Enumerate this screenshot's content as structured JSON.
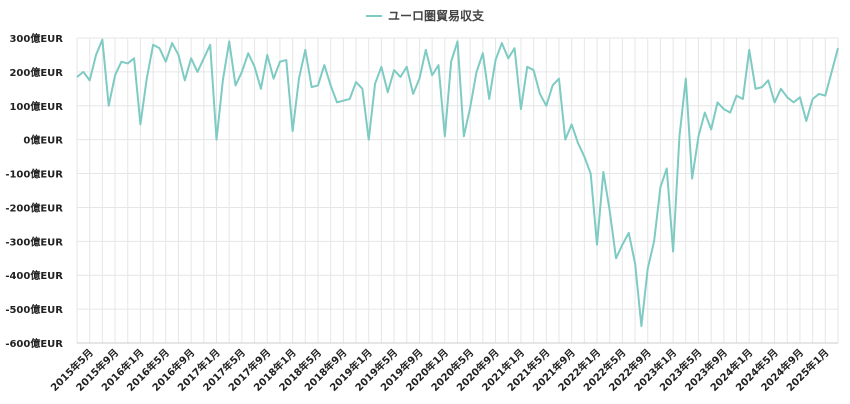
{
  "chart_data": {
    "type": "line",
    "title": "",
    "xlabel": "",
    "ylabel": "",
    "ylim": [
      -600,
      300
    ],
    "y_ticks": [
      "300億EUR",
      "200億EUR",
      "100億EUR",
      "0億EUR",
      "-100億EUR",
      "-200億EUR",
      "-300億EUR",
      "-400億EUR",
      "-500億EUR",
      "-600億EUR"
    ],
    "y_tick_values": [
      300,
      200,
      100,
      0,
      -100,
      -200,
      -300,
      -400,
      -500,
      -600
    ],
    "x_tick_labels": [
      "2015年5月",
      "2015年9月",
      "2016年1月",
      "2016年5月",
      "2016年9月",
      "2017年1月",
      "2017年5月",
      "2017年9月",
      "2018年1月",
      "2018年5月",
      "2018年9月",
      "2019年1月",
      "2019年5月",
      "2019年9月",
      "2020年1月",
      "2020年5月",
      "2020年9月",
      "2021年1月",
      "2021年5月",
      "2021年9月",
      "2022年1月",
      "2022年5月",
      "2022年9月",
      "2023年1月",
      "2023年5月",
      "2023年9月",
      "2024年1月",
      "2024年5月",
      "2024年9月",
      "2025年1月"
    ],
    "legend_position": "top-center",
    "grid": true,
    "series": [
      {
        "name": "ユーロ圏貿易収支",
        "color": "#7ecbc3",
        "x": [
          "2015-03",
          "2015-04",
          "2015-05",
          "2015-06",
          "2015-07",
          "2015-08",
          "2015-09",
          "2015-10",
          "2015-11",
          "2015-12",
          "2016-01",
          "2016-02",
          "2016-03",
          "2016-04",
          "2016-05",
          "2016-06",
          "2016-07",
          "2016-08",
          "2016-09",
          "2016-10",
          "2016-11",
          "2016-12",
          "2017-01",
          "2017-02",
          "2017-03",
          "2017-04",
          "2017-05",
          "2017-06",
          "2017-07",
          "2017-08",
          "2017-09",
          "2017-10",
          "2017-11",
          "2017-12",
          "2018-01",
          "2018-02",
          "2018-03",
          "2018-04",
          "2018-05",
          "2018-06",
          "2018-07",
          "2018-08",
          "2018-09",
          "2018-10",
          "2018-11",
          "2018-12",
          "2019-01",
          "2019-02",
          "2019-03",
          "2019-04",
          "2019-05",
          "2019-06",
          "2019-07",
          "2019-08",
          "2019-09",
          "2019-10",
          "2019-11",
          "2019-12",
          "2020-01",
          "2020-02",
          "2020-03",
          "2020-04",
          "2020-05",
          "2020-06",
          "2020-07",
          "2020-08",
          "2020-09",
          "2020-10",
          "2020-11",
          "2020-12",
          "2021-01",
          "2021-02",
          "2021-03",
          "2021-04",
          "2021-05",
          "2021-06",
          "2021-07",
          "2021-08",
          "2021-09",
          "2021-10",
          "2021-11",
          "2021-12",
          "2022-01",
          "2022-02",
          "2022-03",
          "2022-04",
          "2022-05",
          "2022-06",
          "2022-07",
          "2022-08",
          "2022-09",
          "2022-10",
          "2022-11",
          "2022-12",
          "2023-01",
          "2023-02",
          "2023-03",
          "2023-04",
          "2023-05",
          "2023-06",
          "2023-07",
          "2023-08",
          "2023-09",
          "2023-10",
          "2023-11",
          "2023-12",
          "2024-01",
          "2024-02",
          "2024-03",
          "2024-04",
          "2024-05",
          "2024-06",
          "2024-07",
          "2024-08",
          "2024-09",
          "2024-10",
          "2024-11",
          "2024-12",
          "2025-01",
          "2025-02",
          "2025-03"
        ],
        "values": [
          185,
          200,
          175,
          250,
          295,
          100,
          190,
          230,
          225,
          240,
          45,
          180,
          280,
          270,
          230,
          285,
          250,
          175,
          240,
          200,
          240,
          280,
          0,
          175,
          290,
          160,
          200,
          255,
          215,
          150,
          250,
          180,
          230,
          235,
          25,
          180,
          265,
          155,
          160,
          220,
          160,
          110,
          115,
          120,
          170,
          150,
          0,
          165,
          215,
          140,
          205,
          185,
          215,
          135,
          180,
          265,
          190,
          220,
          10,
          230,
          290,
          10,
          95,
          200,
          255,
          120,
          235,
          285,
          240,
          270,
          90,
          215,
          205,
          135,
          100,
          160,
          180,
          0,
          45,
          -10,
          -50,
          -100,
          -310,
          -95,
          -210,
          -350,
          -310,
          -275,
          -365,
          -550,
          -380,
          -300,
          -140,
          -85,
          -330,
          10,
          180,
          -115,
          10,
          80,
          30,
          110,
          90,
          80,
          130,
          120,
          265,
          150,
          155,
          175,
          110,
          150,
          125,
          110,
          125,
          55,
          120,
          135,
          130,
          200,
          270
        ]
      }
    ]
  }
}
